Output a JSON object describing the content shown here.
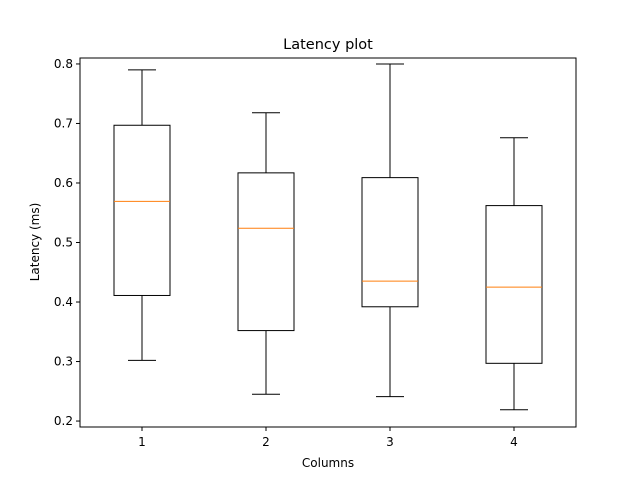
{
  "chart_data": {
    "type": "boxplot",
    "title": "Latency plot",
    "xlabel": "Columns",
    "ylabel": "Latency (ms)",
    "categories": [
      "1",
      "2",
      "3",
      "4"
    ],
    "ylim": [
      0.19,
      0.81
    ],
    "yticks": [
      "0.2",
      "0.3",
      "0.4",
      "0.5",
      "0.6",
      "0.7",
      "0.8"
    ],
    "grid": false,
    "colors": {
      "box": "#000000",
      "median": "#ff7f0e",
      "background": "#ffffff"
    },
    "boxes": [
      {
        "label": "1",
        "whislo": 0.302,
        "q1": 0.411,
        "med": 0.569,
        "q3": 0.697,
        "whishi": 0.79
      },
      {
        "label": "2",
        "whislo": 0.245,
        "q1": 0.352,
        "med": 0.524,
        "q3": 0.617,
        "whishi": 0.718
      },
      {
        "label": "3",
        "whislo": 0.241,
        "q1": 0.392,
        "med": 0.435,
        "q3": 0.609,
        "whishi": 0.8
      },
      {
        "label": "4",
        "whislo": 0.219,
        "q1": 0.297,
        "med": 0.425,
        "q3": 0.562,
        "whishi": 0.676
      }
    ]
  }
}
